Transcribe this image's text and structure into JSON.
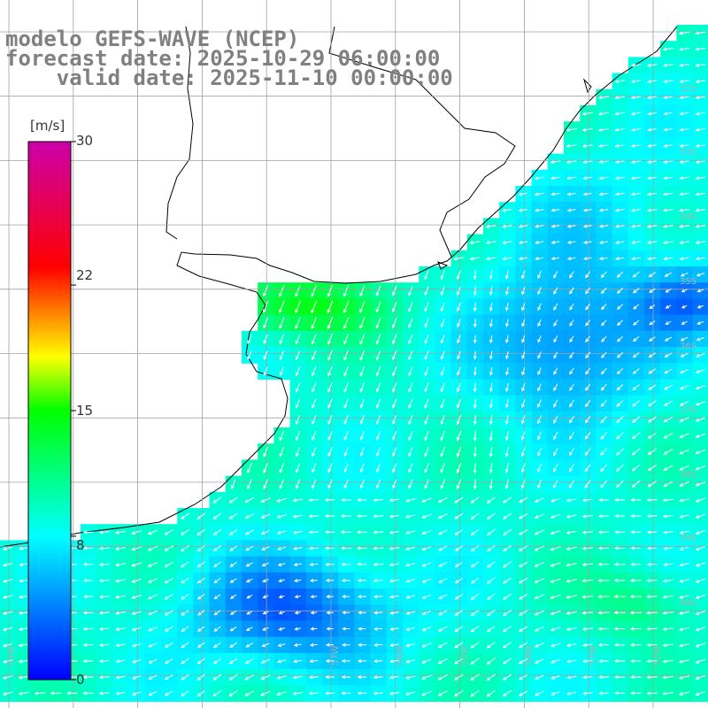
{
  "title_lines": [
    "modelo GEFS-WAVE (NCEP)",
    "forecast date: 2025-10-29 06:00:00",
    "    valid date: 2025-11-10 00:00:00"
  ],
  "colorbar": {
    "unit": "[m/s]",
    "min": 0,
    "max": 30,
    "ticks": [
      {
        "value": 30,
        "label": "30"
      },
      {
        "value": 22,
        "label": "22"
      },
      {
        "value": 15,
        "label": "15"
      },
      {
        "value": 8,
        "label": "8"
      },
      {
        "value": 0,
        "label": "0"
      }
    ],
    "stops": [
      {
        "value": 0,
        "color": "#0000ff"
      },
      {
        "value": 8,
        "color": "#00ffff"
      },
      {
        "value": 15,
        "color": "#00ff00"
      },
      {
        "value": 18,
        "color": "#ffff00"
      },
      {
        "value": 23,
        "color": "#ff0000"
      },
      {
        "value": 30,
        "color": "#cc00aa"
      }
    ]
  },
  "map": {
    "variable": "wind speed",
    "lat_labels": [
      "32S",
      "33S",
      "34S",
      "35S",
      "36S",
      "37S",
      "38S",
      "39S",
      "40S"
    ],
    "lon_labels": [
      "57W",
      "56W",
      "55W",
      "54W",
      "53W",
      "52W",
      "51W"
    ],
    "land_color": "#ffffff",
    "grid_color": "#a0a0a0"
  }
}
